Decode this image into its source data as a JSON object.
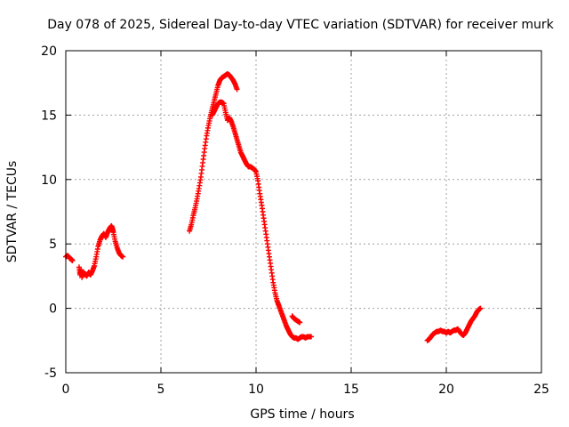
{
  "chart_data": {
    "type": "scatter",
    "title": "Day 078 of 2025, Sidereal Day-to-day VTEC variation (SDTVAR) for receiver murk",
    "xlabel": "GPS time / hours",
    "ylabel": "SDTVAR / TECUs",
    "xlim": [
      0,
      25
    ],
    "ylim": [
      -5,
      20
    ],
    "xticks": [
      0,
      5,
      10,
      15,
      20,
      25
    ],
    "yticks": [
      -5,
      0,
      5,
      10,
      15,
      20
    ],
    "xtick_labels": [
      "0",
      "5",
      "10",
      "15",
      "20",
      "25"
    ],
    "ytick_labels": [
      "-5",
      "0",
      "5",
      "10",
      "15",
      "20"
    ],
    "grid": true,
    "marker": "plus",
    "color": "#ff0000",
    "series": [
      {
        "name": "SDTVAR",
        "segments": [
          {
            "x": [
              0.0,
              0.1,
              0.2,
              0.3,
              0.35
            ],
            "y": [
              4.0,
              4.1,
              3.9,
              3.8,
              3.7
            ]
          },
          {
            "x": [
              0.7,
              0.75,
              0.8,
              0.85,
              0.9,
              1.0,
              1.1,
              1.2,
              1.3,
              1.4,
              1.5,
              1.6,
              1.7,
              1.8,
              1.9,
              2.0,
              2.1,
              2.2,
              2.3,
              2.4,
              2.45,
              2.5,
              2.6,
              2.7,
              2.8,
              2.9,
              3.0
            ],
            "y": [
              3.2,
              2.6,
              3.0,
              2.4,
              2.8,
              2.7,
              2.5,
              2.8,
              2.6,
              2.9,
              3.3,
              4.0,
              4.8,
              5.3,
              5.6,
              5.8,
              5.5,
              5.9,
              6.2,
              6.4,
              6.2,
              5.9,
              5.2,
              4.7,
              4.3,
              4.1,
              4.0
            ]
          },
          {
            "x": [
              6.5,
              6.6,
              6.7,
              6.8,
              6.9,
              7.0,
              7.1,
              7.2,
              7.3,
              7.4,
              7.5,
              7.6,
              7.7,
              7.8,
              7.9,
              8.0,
              8.1,
              8.2,
              8.3,
              8.4,
              8.5,
              8.6,
              8.7,
              8.8,
              8.9,
              9.0
            ],
            "y": [
              6.0,
              6.5,
              7.2,
              7.8,
              8.5,
              9.3,
              10.2,
              11.3,
              12.4,
              13.4,
              14.2,
              14.9,
              15.5,
              16.1,
              16.7,
              17.3,
              17.7,
              17.9,
              18.0,
              18.1,
              18.2,
              18.1,
              17.9,
              17.7,
              17.4,
              17.0
            ]
          },
          {
            "x": [
              7.7,
              7.8,
              7.9,
              8.0,
              8.1,
              8.2,
              8.3,
              8.4,
              8.5,
              8.6,
              8.7,
              8.8,
              8.9,
              9.0,
              9.1,
              9.2,
              9.3,
              9.4,
              9.5,
              9.6,
              9.7,
              9.8,
              9.9,
              10.0,
              10.1,
              10.2,
              10.3,
              10.4,
              10.5,
              10.6,
              10.7,
              10.8,
              10.9,
              11.0,
              11.1,
              11.2,
              11.3,
              11.4,
              11.5,
              11.6,
              11.7,
              11.8,
              11.9,
              12.0,
              12.1,
              12.2,
              12.3,
              12.4,
              12.5,
              12.6,
              12.7,
              12.8,
              12.9
            ],
            "y": [
              15.0,
              15.3,
              15.6,
              15.9,
              16.0,
              16.0,
              15.9,
              15.2,
              14.6,
              14.8,
              14.5,
              14.1,
              13.6,
              13.1,
              12.6,
              12.1,
              11.8,
              11.5,
              11.2,
              11.0,
              11.0,
              10.9,
              10.8,
              10.6,
              9.9,
              8.9,
              8.0,
              7.0,
              6.0,
              5.0,
              4.0,
              3.0,
              2.0,
              1.2,
              0.6,
              0.2,
              -0.2,
              -0.6,
              -1.0,
              -1.4,
              -1.7,
              -2.0,
              -2.2,
              -2.3,
              -2.3,
              -2.4,
              -2.3,
              -2.2,
              -2.2,
              -2.3,
              -2.2,
              -2.2,
              -2.2
            ]
          },
          {
            "x": [
              11.9,
              12.0,
              12.1,
              12.2,
              12.3
            ],
            "y": [
              -0.6,
              -0.8,
              -0.9,
              -1.0,
              -1.1
            ]
          },
          {
            "x": [
              19.0,
              19.1,
              19.2,
              19.3,
              19.4,
              19.5,
              19.6,
              19.7,
              19.8,
              19.9,
              20.0,
              20.1,
              20.2,
              20.3,
              20.4,
              20.5,
              20.6,
              20.7,
              20.8,
              20.9,
              21.0,
              21.1,
              21.2,
              21.3,
              21.4,
              21.5,
              21.6,
              21.7,
              21.8
            ],
            "y": [
              -2.5,
              -2.4,
              -2.2,
              -2.0,
              -1.9,
              -1.8,
              -1.8,
              -1.7,
              -1.8,
              -1.8,
              -1.9,
              -1.8,
              -1.9,
              -1.8,
              -1.7,
              -1.7,
              -1.6,
              -1.8,
              -2.0,
              -2.1,
              -1.9,
              -1.6,
              -1.3,
              -1.0,
              -0.8,
              -0.6,
              -0.3,
              -0.1,
              0.0
            ]
          }
        ]
      }
    ]
  }
}
